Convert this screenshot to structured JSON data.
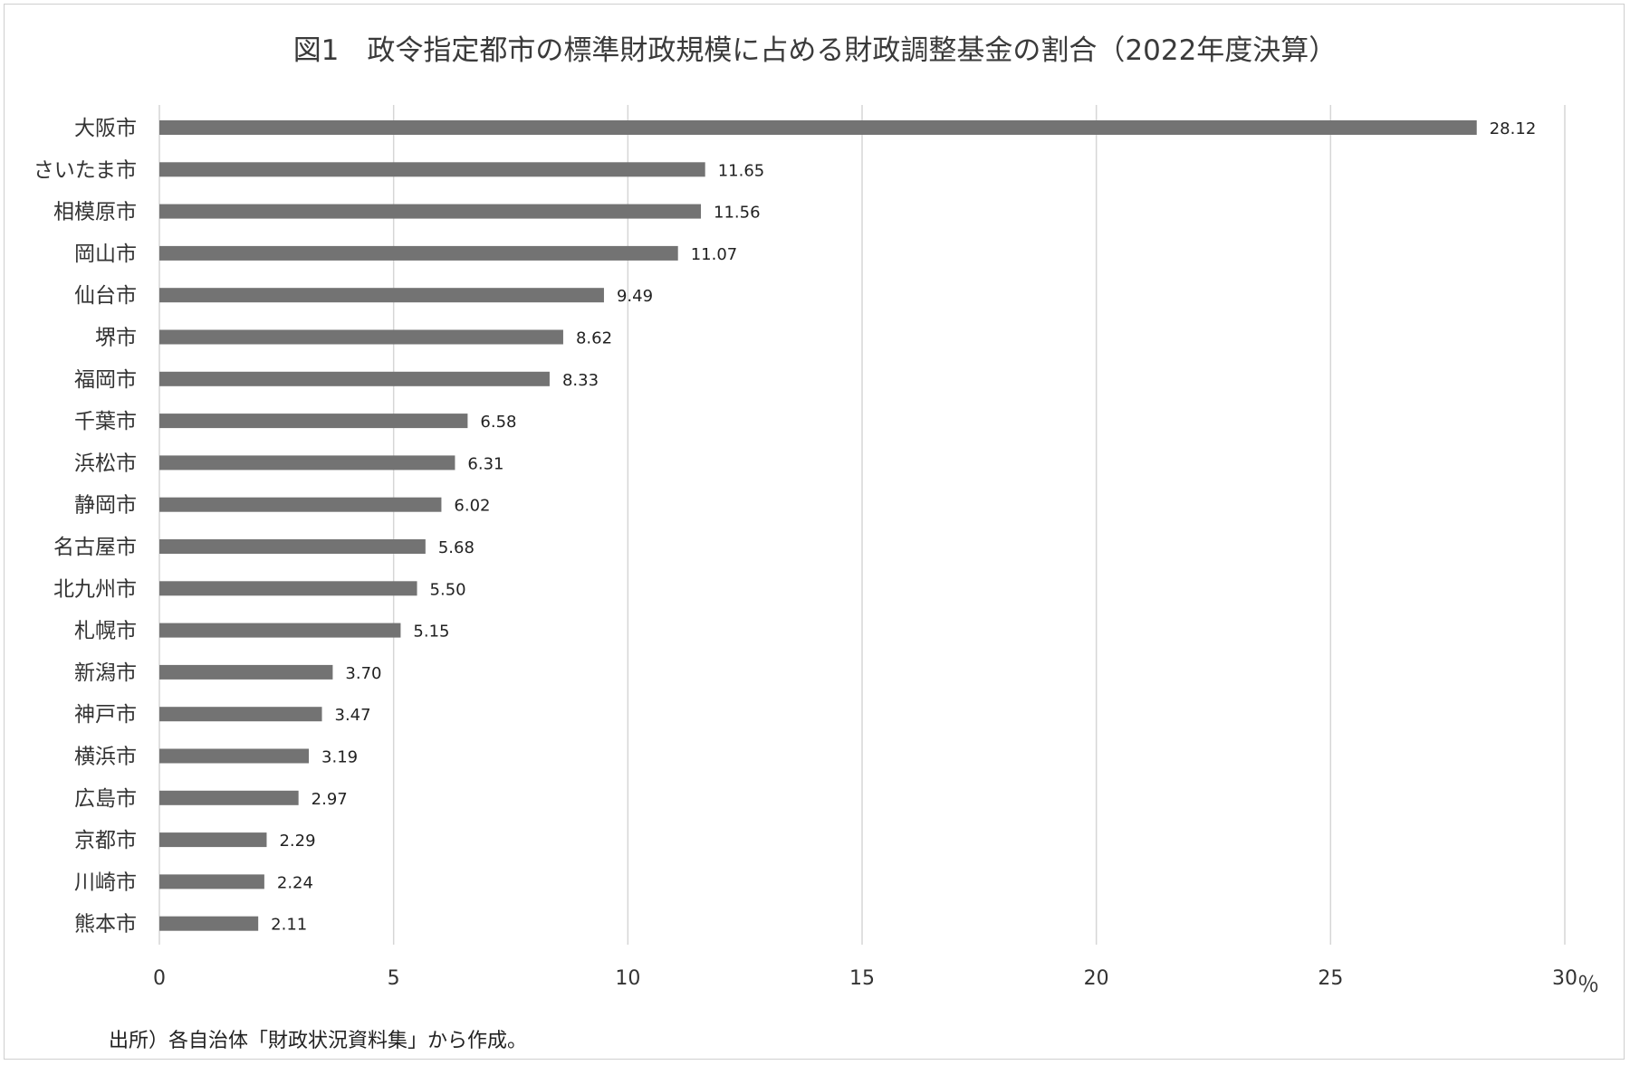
{
  "title": "図1　政令指定都市の標準財政規模に占める財政調整基金の割合（2022年度決算）",
  "unit_label": "％",
  "source_note": "出所）各自治体「財政状況資料集」から作成。",
  "colors": {
    "bar": "#737373",
    "grid": "#d6d6d6",
    "axis_text": "#333333",
    "frame": "#cfcfcf"
  },
  "chart_data": {
    "type": "bar",
    "orientation": "horizontal",
    "title": "図1　政令指定都市の標準財政規模に占める財政調整基金の割合（2022年度決算）",
    "xlabel": "％",
    "ylabel": "",
    "xlim": [
      0,
      30
    ],
    "x_ticks": [
      0,
      5,
      10,
      15,
      20,
      25,
      30
    ],
    "grid": "vertical",
    "legend": "none",
    "categories": [
      "大阪市",
      "さいたま市",
      "相模原市",
      "岡山市",
      "仙台市",
      "堺市",
      "福岡市",
      "千葉市",
      "浜松市",
      "静岡市",
      "名古屋市",
      "北九州市",
      "札幌市",
      "新潟市",
      "神戸市",
      "横浜市",
      "広島市",
      "京都市",
      "川崎市",
      "熊本市"
    ],
    "values": [
      28.12,
      11.65,
      11.56,
      11.07,
      9.49,
      8.62,
      8.33,
      6.58,
      6.31,
      6.02,
      5.68,
      5.5,
      5.15,
      3.7,
      3.47,
      3.19,
      2.97,
      2.29,
      2.24,
      2.11
    ],
    "value_labels": [
      "28.12",
      "11.65",
      "11.56",
      "11.07",
      "9.49",
      "8.62",
      "8.33",
      "6.58",
      "6.31",
      "6.02",
      "5.68",
      "5.50",
      "5.15",
      "3.70",
      "3.47",
      "3.19",
      "2.97",
      "2.29",
      "2.24",
      "2.11"
    ]
  }
}
